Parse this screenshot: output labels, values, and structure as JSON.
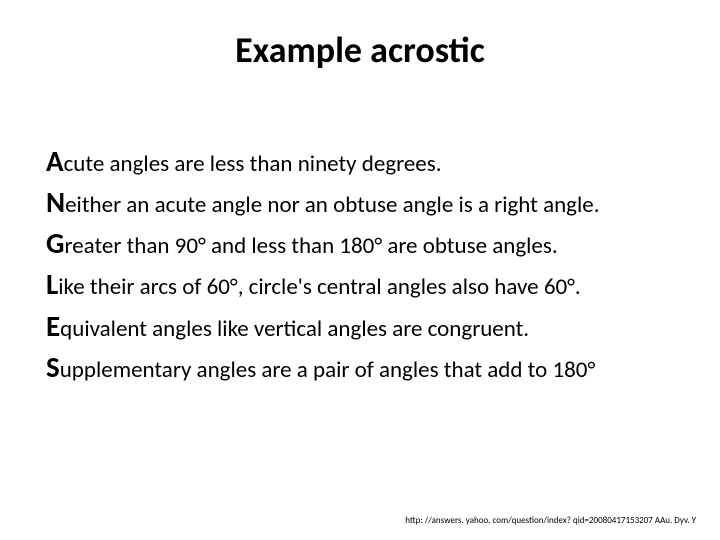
{
  "slide": {
    "title": "Example acrostic",
    "lines": [
      {
        "cap": "A",
        "rest": "cute angles are less than ninety degrees."
      },
      {
        "cap": "N",
        "rest": "either an acute angle nor an obtuse angle is a right angle."
      },
      {
        "cap": "G",
        "rest": "reater than 90° and less than 180° are obtuse angles."
      },
      {
        "cap": "L",
        "rest": "ike their arcs of 60°, circle's central angles also have 60°."
      },
      {
        "cap": "E",
        "rest": "quivalent angles like vertical angles are congruent."
      },
      {
        "cap": "S",
        "rest": "upplementary angles are a pair of angles that add to 180°"
      }
    ],
    "footer": "http: //answers. yahoo. com/question/index? qid=20080417153207 AAu. Dyv. Y"
  },
  "styles": {
    "background_color": "#ffffff",
    "title_color": "#000000",
    "title_fontsize": 36,
    "title_fontweight": 700,
    "body_color": "#000000",
    "body_fontsize": 23,
    "cap_fontsize": 29,
    "cap_fontweight": 700,
    "footer_fontsize": 9,
    "footer_color": "#000000",
    "font_family": "Calibri, Arial, sans-serif"
  }
}
